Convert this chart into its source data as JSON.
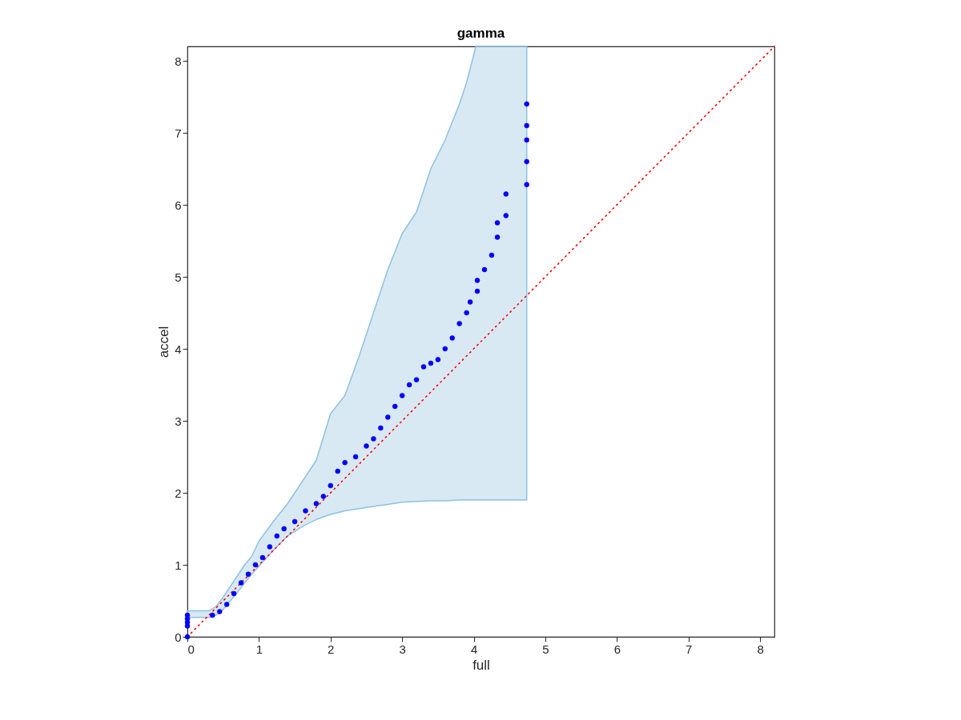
{
  "chart_data": {
    "type": "scatter",
    "title": "gamma",
    "xlabel": "full",
    "ylabel": "accel",
    "xlim": [
      0,
      8.2
    ],
    "ylim": [
      0,
      8.2
    ],
    "xticks": [
      0,
      1,
      2,
      3,
      4,
      5,
      6,
      7,
      8
    ],
    "yticks": [
      0,
      1,
      2,
      3,
      4,
      5,
      6,
      7,
      8
    ],
    "grid": false,
    "series": [
      {
        "color": "#0000ff",
        "marker": "circle",
        "x": [
          0,
          0,
          0,
          0,
          0,
          0.35,
          0.45,
          0.55,
          0.65,
          0.75,
          0.85,
          0.95,
          1.05,
          1.15,
          1.25,
          1.35,
          1.5,
          1.65,
          1.8,
          1.9,
          2.0,
          2.1,
          2.2,
          2.35,
          2.5,
          2.6,
          2.7,
          2.8,
          2.9,
          3.0,
          3.1,
          3.2,
          3.3,
          3.4,
          3.5,
          3.6,
          3.7,
          3.8,
          3.9,
          3.95,
          4.05,
          4.05,
          4.15,
          4.25,
          4.33,
          4.33,
          4.45,
          4.45,
          4.74,
          4.74,
          4.74,
          4.74,
          4.74
        ],
        "values": [
          0,
          0.15,
          0.2,
          0.25,
          0.3,
          0.3,
          0.35,
          0.45,
          0.6,
          0.75,
          0.87,
          1.0,
          1.1,
          1.25,
          1.4,
          1.5,
          1.6,
          1.75,
          1.85,
          1.95,
          2.1,
          2.3,
          2.42,
          2.5,
          2.65,
          2.75,
          2.9,
          3.05,
          3.2,
          3.35,
          3.5,
          3.57,
          3.75,
          3.8,
          3.85,
          4.0,
          4.15,
          4.35,
          4.5,
          4.65,
          4.8,
          4.95,
          5.1,
          5.3,
          5.55,
          5.75,
          5.85,
          6.15,
          6.28,
          6.6,
          6.9,
          7.1,
          7.4
        ]
      },
      {
        "type": "area",
        "color": "#8ec1e0",
        "x": [
          0,
          0.3,
          0.4,
          0.5,
          0.6,
          0.7,
          0.8,
          0.9,
          1.0,
          1.2,
          1.4,
          1.6,
          1.8,
          2.0,
          2.2,
          2.4,
          2.6,
          2.8,
          3.0,
          3.2,
          3.4,
          3.6,
          3.8,
          3.9,
          4.03,
          4.3,
          4.74
        ],
        "values": [
          null,
          null,
          null,
          null,
          null,
          null,
          null,
          null,
          null,
          null,
          null,
          null,
          null,
          null,
          null,
          null,
          null,
          null,
          null,
          null,
          null,
          null,
          null,
          null,
          null,
          null,
          null
        ],
        "lower": [
          0.27,
          0.27,
          0.3,
          0.38,
          0.5,
          0.62,
          0.75,
          0.87,
          0.98,
          1.2,
          1.4,
          1.53,
          1.63,
          1.7,
          1.75,
          1.78,
          1.81,
          1.84,
          1.87,
          1.88,
          1.89,
          1.89,
          1.9,
          1.9,
          1.9,
          1.9,
          1.9
        ],
        "upper": [
          0.36,
          0.36,
          0.42,
          0.55,
          0.7,
          0.85,
          1.0,
          1.12,
          1.33,
          1.6,
          1.85,
          2.15,
          2.45,
          3.1,
          3.35,
          3.9,
          4.5,
          5.1,
          5.6,
          5.9,
          6.5,
          6.9,
          7.4,
          7.7,
          8.2,
          8.2,
          8.2
        ]
      },
      {
        "type": "line",
        "color": "#ff0000",
        "line_style": "dotted",
        "x": [
          0,
          8.2
        ],
        "values": [
          0,
          8.2
        ]
      }
    ]
  }
}
